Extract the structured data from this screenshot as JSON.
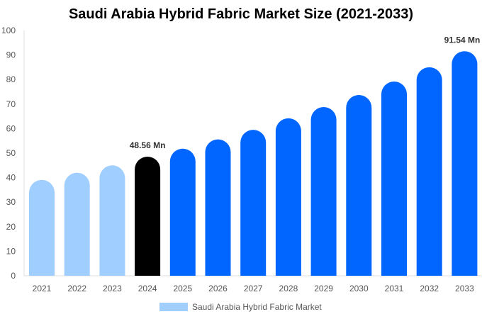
{
  "chart_data": {
    "type": "bar",
    "title": "Saudi Arabia Hybrid Fabric Market Size (2021-2033)",
    "categories": [
      "2021",
      "2022",
      "2023",
      "2024",
      "2025",
      "2026",
      "2027",
      "2028",
      "2029",
      "2030",
      "2031",
      "2032",
      "2033"
    ],
    "series": [
      {
        "name": "Saudi Arabia Hybrid Fabric Market",
        "values": [
          39.1,
          42.0,
          45.0,
          48.56,
          51.8,
          55.6,
          59.5,
          64.2,
          68.8,
          73.7,
          79.2,
          85.0,
          91.54
        ]
      }
    ],
    "data_labels": {
      "3": "48.56 Mn",
      "12": "91.54 Mn"
    },
    "ylim": [
      0,
      100
    ],
    "yticks": [
      0,
      10,
      20,
      30,
      40,
      50,
      60,
      70,
      80,
      90,
      100
    ],
    "grid": false,
    "legend": "bottom",
    "colors": {
      "history": "#a0cfff",
      "current": "#000000",
      "forecast": "#0066ff"
    }
  }
}
